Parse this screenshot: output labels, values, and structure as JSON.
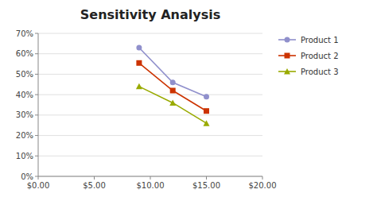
{
  "chart_data": {
    "type": "line",
    "title": "Sensitivity Analysis",
    "x": [
      9.0,
      12.0,
      15.0
    ],
    "series": [
      {
        "name": "Product 1",
        "color": "#9090cc",
        "marker": "circle",
        "values": [
          0.63,
          0.46,
          0.39
        ]
      },
      {
        "name": "Product 2",
        "color": "#cc3300",
        "marker": "square",
        "values": [
          0.555,
          0.42,
          0.32
        ]
      },
      {
        "name": "Product 3",
        "color": "#99aa00",
        "marker": "triangle",
        "values": [
          0.44,
          0.36,
          0.26
        ]
      }
    ],
    "xlim": [
      0,
      20
    ],
    "xticks": [
      {
        "value": 0,
        "label": "$0.00"
      },
      {
        "value": 5,
        "label": "$5.00"
      },
      {
        "value": 10,
        "label": "$10.00"
      },
      {
        "value": 15,
        "label": "$15.00"
      },
      {
        "value": 20,
        "label": "$20.00"
      }
    ],
    "ylim": [
      0,
      0.7
    ],
    "yticks": [
      {
        "value": 0.0,
        "label": "0%"
      },
      {
        "value": 0.1,
        "label": "10%"
      },
      {
        "value": 0.2,
        "label": "20%"
      },
      {
        "value": 0.3,
        "label": "30%"
      },
      {
        "value": 0.4,
        "label": "40%"
      },
      {
        "value": 0.5,
        "label": "50%"
      },
      {
        "value": 0.6,
        "label": "60%"
      },
      {
        "value": 0.7,
        "label": "70%"
      }
    ],
    "grid": true,
    "legend": "right"
  }
}
